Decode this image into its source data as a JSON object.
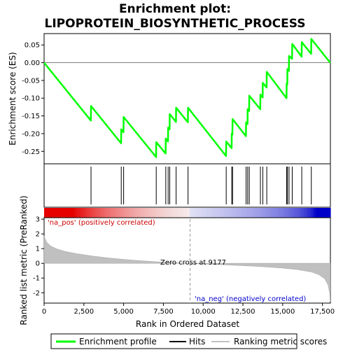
{
  "chart_data": {
    "type": "line",
    "title_line1": "Enrichment plot:",
    "title_line2": "LIPOPROTEIN_BIOSYNTHETIC_PROCESS",
    "es_ylabel": "Enrichment score (ES)",
    "metric_ylabel": "Ranked list metric (PreRanked)",
    "xlabel": "Rank in Ordered Dataset",
    "x_range": [
      0,
      18000
    ],
    "x_ticks": [
      0,
      2500,
      5000,
      7500,
      10000,
      12500,
      15000,
      17500
    ],
    "x_tick_labels": [
      "0",
      "2,500",
      "5,000",
      "7,500",
      "10,000",
      "12,500",
      "15,000",
      "17,500"
    ],
    "es_range": [
      -0.285,
      0.082
    ],
    "es_ticks": [
      0.05,
      0.0,
      -0.05,
      -0.1,
      -0.15,
      -0.2,
      -0.25
    ],
    "es_tick_labels": [
      "0.05",
      "0.00",
      "-0.05",
      "-0.10",
      "-0.15",
      "-0.20",
      "-0.25"
    ],
    "metric_range": [
      -2.7,
      3.1
    ],
    "metric_ticks": [
      3,
      2,
      1,
      0,
      -1,
      -2
    ],
    "metric_tick_labels": [
      "3",
      "2",
      "1",
      "0",
      "-1",
      "-2"
    ],
    "hits": [
      2950,
      4850,
      5000,
      7050,
      7650,
      7800,
      7900,
      8300,
      9050,
      11450,
      11800,
      11850,
      12700,
      12800,
      12900,
      13600,
      13750,
      14000,
      15250,
      15300,
      15400,
      15600,
      16200,
      16800
    ],
    "es_points": [
      [
        0,
        0.0
      ],
      [
        2940,
        -0.163
      ],
      [
        2950,
        -0.122
      ],
      [
        4840,
        -0.227
      ],
      [
        4850,
        -0.188
      ],
      [
        4990,
        -0.196
      ],
      [
        5000,
        -0.153
      ],
      [
        7040,
        -0.266
      ],
      [
        7050,
        -0.224
      ],
      [
        7640,
        -0.256
      ],
      [
        7650,
        -0.214
      ],
      [
        7790,
        -0.222
      ],
      [
        7800,
        -0.183
      ],
      [
        7890,
        -0.188
      ],
      [
        7900,
        -0.145
      ],
      [
        8290,
        -0.167
      ],
      [
        8300,
        -0.127
      ],
      [
        9040,
        -0.168
      ],
      [
        9050,
        -0.127
      ],
      [
        11440,
        -0.263
      ],
      [
        11450,
        -0.222
      ],
      [
        11790,
        -0.241
      ],
      [
        11800,
        -0.2
      ],
      [
        11840,
        -0.203
      ],
      [
        11850,
        -0.159
      ],
      [
        12690,
        -0.207
      ],
      [
        12700,
        -0.168
      ],
      [
        12790,
        -0.173
      ],
      [
        12800,
        -0.131
      ],
      [
        12890,
        -0.136
      ],
      [
        12900,
        -0.093
      ],
      [
        13590,
        -0.131
      ],
      [
        13600,
        -0.09
      ],
      [
        13740,
        -0.098
      ],
      [
        13750,
        -0.057
      ],
      [
        13990,
        -0.07
      ],
      [
        14000,
        -0.026
      ],
      [
        15240,
        -0.1
      ],
      [
        15250,
        -0.059
      ],
      [
        15290,
        -0.061
      ],
      [
        15300,
        -0.018
      ],
      [
        15390,
        -0.023
      ],
      [
        15400,
        0.019
      ],
      [
        15590,
        0.011
      ],
      [
        15600,
        0.053
      ],
      [
        16190,
        0.017
      ],
      [
        16200,
        0.058
      ],
      [
        16790,
        0.025
      ],
      [
        16800,
        0.067
      ],
      [
        17990,
        0.0
      ]
    ],
    "metric_curve": [
      [
        0,
        1.85
      ],
      [
        150,
        1.45
      ],
      [
        400,
        1.18
      ],
      [
        800,
        0.98
      ],
      [
        1300,
        0.82
      ],
      [
        2000,
        0.66
      ],
      [
        3000,
        0.5
      ],
      [
        4000,
        0.37
      ],
      [
        5000,
        0.27
      ],
      [
        6000,
        0.18
      ],
      [
        7000,
        0.11
      ],
      [
        8000,
        0.05
      ],
      [
        9177,
        0.0
      ],
      [
        10500,
        -0.06
      ],
      [
        12000,
        -0.13
      ],
      [
        13500,
        -0.21
      ],
      [
        15000,
        -0.32
      ],
      [
        16000,
        -0.43
      ],
      [
        16800,
        -0.58
      ],
      [
        17300,
        -0.78
      ],
      [
        17650,
        -1.05
      ],
      [
        17850,
        -1.45
      ],
      [
        17950,
        -2.0
      ],
      [
        17990,
        -2.6
      ]
    ],
    "zero_cross": 9177,
    "zero_cross_label": "Zero cross at 9177",
    "pos_label": "'na_pos' (positively correlated)",
    "neg_label": "'na_neg' (negatively correlated)",
    "legend": {
      "enrichment": "Enrichment profile",
      "hits": "Hits",
      "ranking": "Ranking metric scores"
    },
    "colors": {
      "es_line": "#00ff00",
      "hit_line": "#000000",
      "metric_fill": "#c0c0c0",
      "pos_text": "#cc0000",
      "neg_text": "#0000cc"
    }
  }
}
